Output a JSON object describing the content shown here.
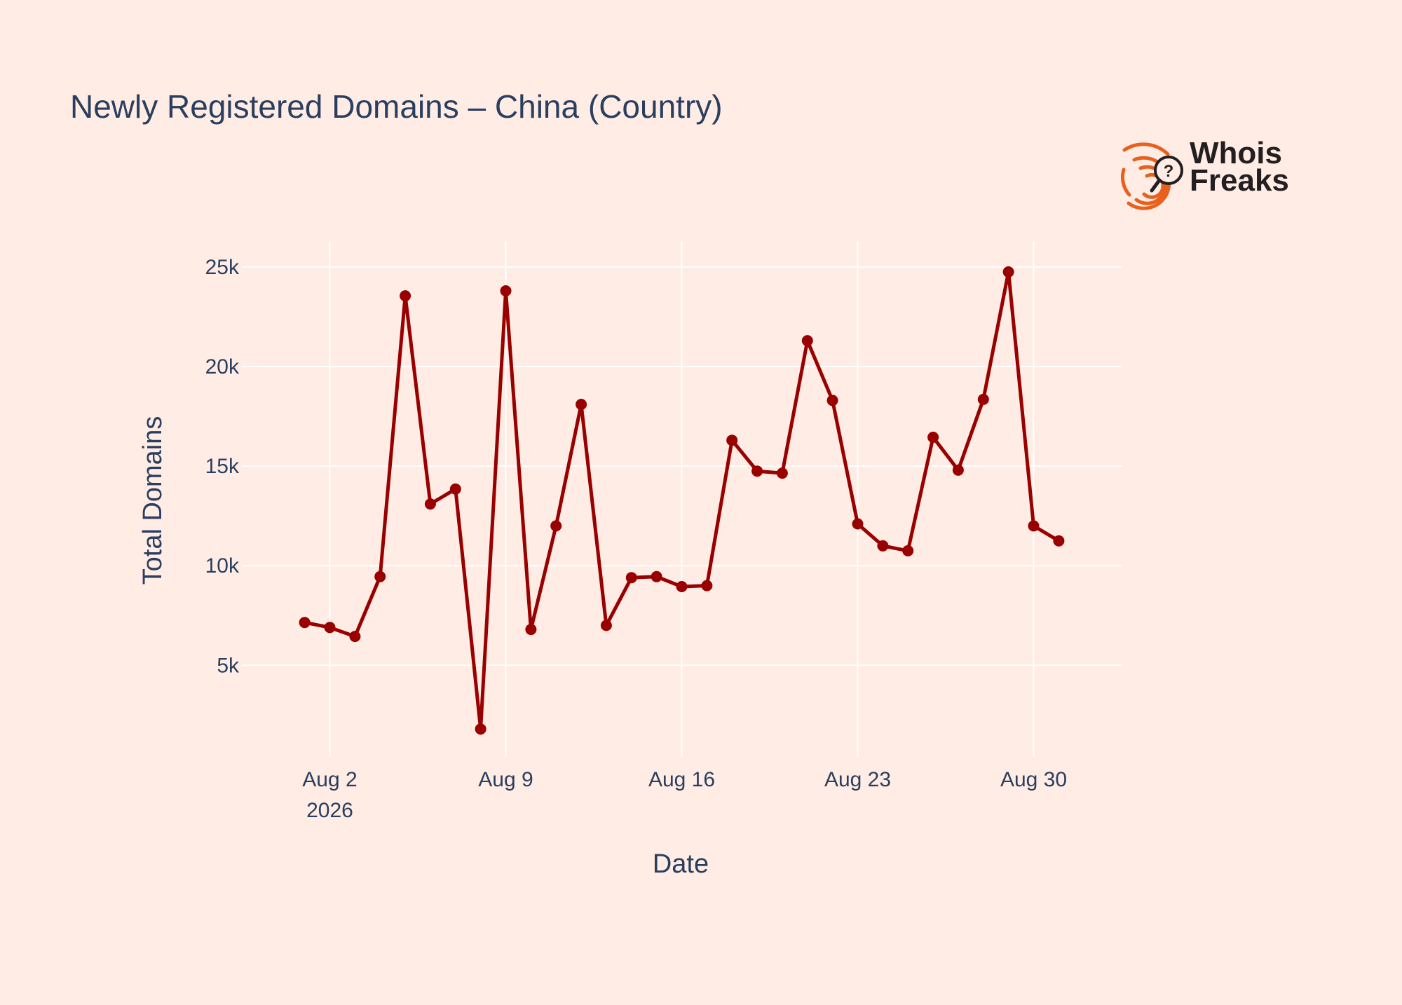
{
  "chart_data": {
    "type": "line",
    "title": "Newly Registered Domains – China (Country)",
    "xlabel": "Date",
    "ylabel": "Total Domains",
    "x": [
      "2026-08-01",
      "2026-08-02",
      "2026-08-03",
      "2026-08-04",
      "2026-08-05",
      "2026-08-06",
      "2026-08-07",
      "2026-08-08",
      "2026-08-09",
      "2026-08-10",
      "2026-08-11",
      "2026-08-12",
      "2026-08-13",
      "2026-08-14",
      "2026-08-15",
      "2026-08-16",
      "2026-08-17",
      "2026-08-18",
      "2026-08-19",
      "2026-08-20",
      "2026-08-21",
      "2026-08-22",
      "2026-08-23",
      "2026-08-24",
      "2026-08-25",
      "2026-08-26",
      "2026-08-27",
      "2026-08-28",
      "2026-08-29",
      "2026-08-30",
      "2026-08-31"
    ],
    "series": [
      {
        "name": "",
        "values": [
          7150,
          6900,
          6450,
          9450,
          23550,
          13100,
          13850,
          1800,
          23800,
          6800,
          12000,
          18100,
          7000,
          9400,
          9450,
          8950,
          9000,
          16300,
          14750,
          14650,
          21300,
          18300,
          12100,
          11000,
          10750,
          16450,
          14800,
          18350,
          24750,
          12000,
          11250
        ]
      }
    ],
    "xlim": [
      "2026-07-29T12:00",
      "2026-09-02T12:00"
    ],
    "ylim": [
      400,
      26300
    ],
    "x_ticks": [
      {
        "value": "2026-08-02",
        "label": "Aug 2",
        "sublabel": "2026"
      },
      {
        "value": "2026-08-09",
        "label": "Aug 9",
        "sublabel": ""
      },
      {
        "value": "2026-08-16",
        "label": "Aug 16",
        "sublabel": ""
      },
      {
        "value": "2026-08-23",
        "label": "Aug 23",
        "sublabel": ""
      },
      {
        "value": "2026-08-30",
        "label": "Aug 30",
        "sublabel": ""
      }
    ],
    "y_ticks": [
      {
        "value": 5000,
        "label": "5k"
      },
      {
        "value": 10000,
        "label": "10k"
      },
      {
        "value": 15000,
        "label": "15k"
      },
      {
        "value": 20000,
        "label": "20k"
      },
      {
        "value": 25000,
        "label": "25k"
      }
    ],
    "grid": true,
    "legend": false,
    "colors": {
      "background": "#ffece4",
      "line": "#990000",
      "grid": "#ffffff",
      "text": "#2a3f5f",
      "logo_orange": "#e8601c",
      "logo_dark": "#231f20"
    }
  },
  "logo": {
    "line1": "Whois",
    "line2": "Freaks",
    "icon": "fingerprint-magnifier-icon"
  }
}
